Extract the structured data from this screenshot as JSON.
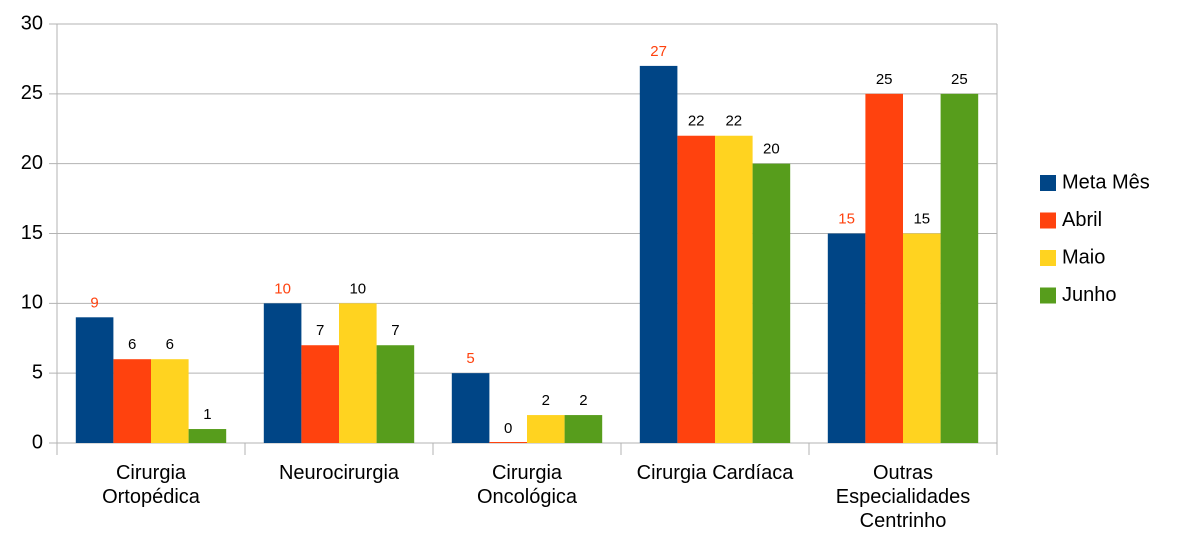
{
  "chart_data": {
    "type": "bar",
    "categories": [
      "Cirurgia Ortopédica",
      "Neurocirurgia",
      "Cirurgia Oncológica",
      "Cirurgia Cardíaca",
      "Outras Especialidades Centrinho"
    ],
    "series": [
      {
        "name": "Meta Mês",
        "color": "#004586",
        "label_color": "#ff420e",
        "values": [
          9,
          10,
          5,
          27,
          15
        ]
      },
      {
        "name": "Abril",
        "color": "#ff420e",
        "label_color": "#000000",
        "values": [
          6,
          7,
          0,
          22,
          25
        ]
      },
      {
        "name": "Maio",
        "color": "#ffd320",
        "label_color": "#000000",
        "values": [
          6,
          10,
          2,
          22,
          15
        ]
      },
      {
        "name": "Junho",
        "color": "#579d1c",
        "label_color": "#000000",
        "values": [
          1,
          7,
          2,
          20,
          25
        ]
      }
    ],
    "ylim": [
      0,
      30
    ],
    "yticks": [
      0,
      5,
      10,
      15,
      20,
      25,
      30
    ],
    "grid": true,
    "legend": "right"
  }
}
